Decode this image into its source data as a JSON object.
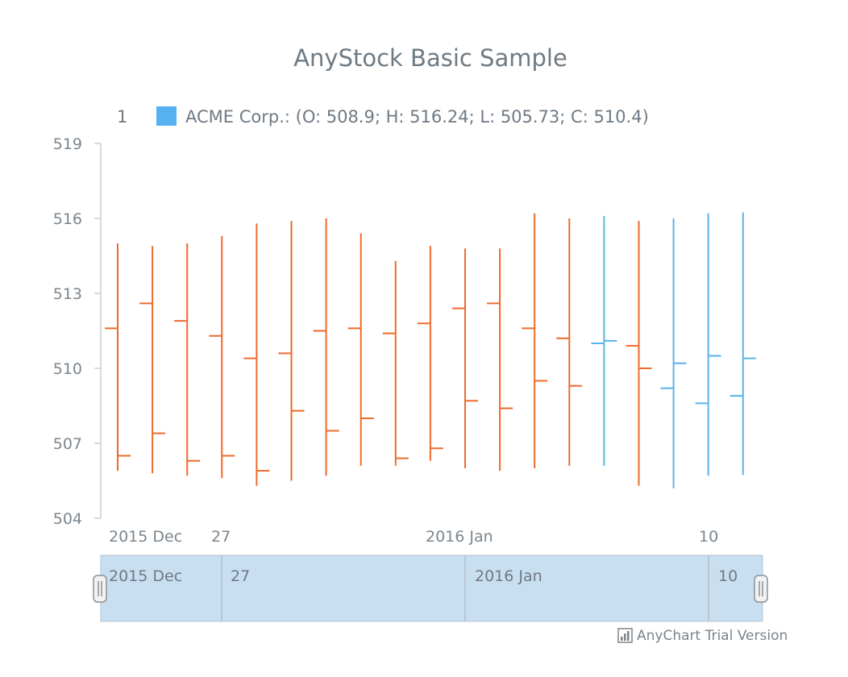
{
  "chart_data": {
    "type": "ohlc",
    "title": "AnyStock Basic Sample",
    "legend": {
      "index": "1",
      "series_text": "ACME Corp.: (O: 508.9; H: 516.24; L: 505.73; C: 510.4)"
    },
    "y_axis": {
      "min": 504,
      "max": 519,
      "ticks": [
        "504",
        "507",
        "510",
        "513",
        "516",
        "519"
      ]
    },
    "x_axis": {
      "labels": [
        "2015 Dec",
        "27",
        "2016 Jan",
        "10"
      ]
    },
    "scroller": {
      "labels": [
        "2015 Dec",
        "27",
        "2016 Jan",
        "10"
      ]
    },
    "colors": {
      "falling": "#ee6a2b",
      "rising": "#5cb2ea",
      "axis": "#c9cdd0",
      "scroller_fill": "#c8dff2"
    },
    "series": [
      {
        "name": "ACME Corp.",
        "bars": [
          {
            "o": 511.6,
            "h": 515.0,
            "l": 505.9,
            "c": 506.5
          },
          {
            "o": 512.6,
            "h": 514.9,
            "l": 505.8,
            "c": 507.4
          },
          {
            "o": 511.9,
            "h": 515.0,
            "l": 505.7,
            "c": 506.3
          },
          {
            "o": 511.3,
            "h": 515.3,
            "l": 505.6,
            "c": 506.5
          },
          {
            "o": 510.4,
            "h": 515.8,
            "l": 505.3,
            "c": 505.9
          },
          {
            "o": 510.6,
            "h": 515.9,
            "l": 505.5,
            "c": 508.3
          },
          {
            "o": 511.5,
            "h": 516.0,
            "l": 505.7,
            "c": 507.5
          },
          {
            "o": 511.6,
            "h": 515.4,
            "l": 506.1,
            "c": 508.0
          },
          {
            "o": 511.4,
            "h": 514.3,
            "l": 506.1,
            "c": 506.4
          },
          {
            "o": 511.8,
            "h": 514.9,
            "l": 506.3,
            "c": 506.8
          },
          {
            "o": 512.4,
            "h": 514.8,
            "l": 506.0,
            "c": 508.7
          },
          {
            "o": 512.6,
            "h": 514.8,
            "l": 505.9,
            "c": 508.4
          },
          {
            "o": 511.6,
            "h": 516.2,
            "l": 506.0,
            "c": 509.5
          },
          {
            "o": 511.2,
            "h": 516.0,
            "l": 506.1,
            "c": 509.3
          },
          {
            "o": 511.0,
            "h": 516.1,
            "l": 506.1,
            "c": 511.1
          },
          {
            "o": 510.9,
            "h": 515.9,
            "l": 505.3,
            "c": 510.0
          },
          {
            "o": 509.2,
            "h": 516.0,
            "l": 505.2,
            "c": 510.2
          },
          {
            "o": 508.6,
            "h": 516.2,
            "l": 505.7,
            "c": 510.5
          },
          {
            "o": 508.9,
            "h": 516.24,
            "l": 505.73,
            "c": 510.4
          }
        ]
      }
    ]
  },
  "credits": {
    "text": "AnyChart Trial Version",
    "icon": "bar-chart-icon"
  }
}
